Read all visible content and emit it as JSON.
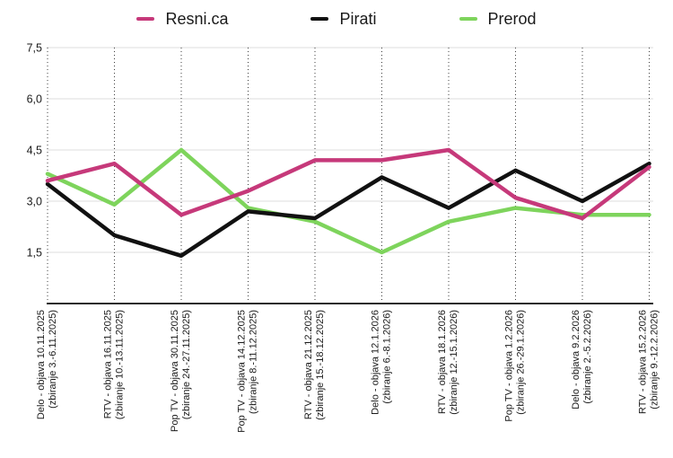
{
  "chart_data": {
    "type": "line",
    "title": "",
    "xlabel": "",
    "ylabel": "",
    "ylim": [
      0,
      7.5
    ],
    "decimal_separator": ",",
    "legend_position": "top",
    "grid": {
      "horizontal": "solid-light",
      "vertical": "dotted"
    },
    "yticks": [
      {
        "value": 7.5,
        "label": "7,5"
      },
      {
        "value": 6.0,
        "label": "6,0"
      },
      {
        "value": 4.5,
        "label": "4,5"
      },
      {
        "value": 3.0,
        "label": "3,0"
      },
      {
        "value": 1.5,
        "label": "1,5"
      }
    ],
    "categories": [
      {
        "line1": "Delo - objava 10.11.2025",
        "line2": "(zbiranje 3.-6.11.2025)"
      },
      {
        "line1": "RTV - objava 16.11.2025",
        "line2": "(zbiranje 10.-13.11.2025)"
      },
      {
        "line1": "Pop TV - objava 30.11.2025",
        "line2": "(zbiranje 24.-27.11.2025)"
      },
      {
        "line1": "Pop TV - objava 14.12.2025",
        "line2": "(zbiranje 8.-11.12.2025)"
      },
      {
        "line1": "RTV - objava 21.12.2025",
        "line2": "(zbiranje 15.-18.12.2025)"
      },
      {
        "line1": "Delo - objava 12.1.2026",
        "line2": "(zbiranje 6.-8.1.2026)"
      },
      {
        "line1": "RTV - objava 18.1.2026",
        "line2": "(zbiranje 12.-15.1.2026)"
      },
      {
        "line1": "Pop TV - objava 1.2.2026",
        "line2": "(zbiranje 26.-29.1.2026)"
      },
      {
        "line1": "Delo - objava 9.2.2026",
        "line2": "(zbiranje 2.-5.2.2026)"
      },
      {
        "line1": "RTV - objava 15.2.2026",
        "line2": "(zbiranje 9.-12.2.2026)"
      }
    ],
    "series": [
      {
        "name": "Resni.ca",
        "color": "#c6397a",
        "values": [
          3.6,
          4.1,
          2.6,
          3.3,
          4.2,
          4.2,
          4.5,
          3.1,
          2.5,
          4.0
        ]
      },
      {
        "name": "Pirati",
        "color": "#111111",
        "values": [
          3.5,
          2.0,
          1.4,
          2.7,
          2.5,
          3.7,
          2.8,
          3.9,
          3.0,
          4.1
        ]
      },
      {
        "name": "Prerod",
        "color": "#7ed45c",
        "values": [
          3.8,
          2.9,
          4.5,
          2.8,
          2.4,
          1.5,
          2.4,
          2.8,
          2.6,
          2.6
        ]
      }
    ]
  },
  "colors": {
    "h_gridline": "#dcdcdc",
    "v_gridline": "#3c3c3c",
    "x_axis": "#2b2b2b",
    "text": "#1a1a1a"
  }
}
